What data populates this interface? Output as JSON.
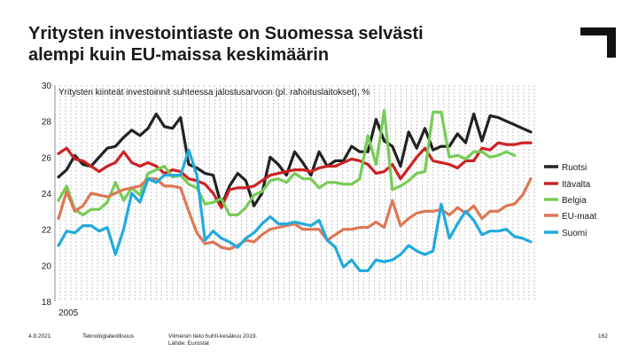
{
  "title_line1": "Yritysten investointiaste on Suomessa selvästi",
  "title_line2": "alempi kuin EU-maissa keskimäärin",
  "logo_icon": "corner-bracket-logo-icon",
  "footer": {
    "date": "4.9.2021",
    "org": "Teknologiateollisuus",
    "source_line1": "Viimeisin tieto huhti-kesäkuu 2019.",
    "source_line2": "Lähde: Eurostat",
    "page": "162"
  },
  "chart_data": {
    "type": "line",
    "subtitle": "Yritysten kiinteät investoinnit suhteessa jalostusarvoon (pl. rahoituslaitokset), %",
    "x_start_label": "2005",
    "ylim": [
      18,
      30
    ],
    "yticks": [
      "30",
      "28",
      "26",
      "24",
      "22",
      "20",
      "18"
    ],
    "grid": "vertical dashed",
    "legend_position": "right",
    "series": [
      {
        "name": "Ruotsi",
        "color": "#222222",
        "values": [
          24.9,
          25.3,
          26.1,
          25.6,
          25.5,
          26.0,
          26.5,
          26.6,
          27.1,
          27.5,
          27.2,
          27.6,
          28.4,
          27.7,
          27.6,
          28.2,
          25.6,
          25.4,
          25.1,
          25.0,
          23.3,
          24.4,
          25.1,
          24.7,
          23.3,
          24.0,
          26.0,
          25.6,
          25.0,
          26.3,
          25.7,
          25.0,
          26.3,
          25.5,
          25.8,
          25.8,
          26.6,
          26.3,
          26.3,
          28.1,
          26.9,
          26.6,
          25.5,
          27.4,
          26.5,
          27.6,
          26.4,
          26.6,
          26.6,
          27.3,
          26.8,
          28.4,
          26.9,
          28.3,
          28.2,
          28.0,
          27.8,
          27.6,
          27.4
        ]
      },
      {
        "name": "Itävalta",
        "color": "#cc2222",
        "values": [
          26.2,
          26.5,
          25.9,
          25.8,
          25.5,
          25.2,
          25.5,
          25.7,
          26.3,
          25.7,
          25.5,
          25.7,
          25.5,
          25.1,
          25.3,
          25.2,
          24.8,
          24.7,
          24.5,
          24.0,
          23.2,
          24.2,
          24.3,
          24.3,
          24.4,
          24.7,
          25.0,
          25.1,
          25.2,
          25.3,
          25.3,
          25.2,
          25.4,
          25.5,
          25.5,
          25.7,
          25.9,
          25.8,
          25.6,
          25.1,
          25.2,
          25.6,
          24.8,
          25.4,
          26.0,
          26.5,
          25.8,
          25.7,
          25.6,
          25.4,
          25.8,
          25.8,
          26.5,
          26.4,
          26.8,
          26.7,
          26.7,
          26.8,
          26.8
        ]
      },
      {
        "name": "Belgia",
        "color": "#77cc55",
        "values": [
          23.6,
          24.4,
          23.1,
          22.8,
          23.1,
          23.1,
          23.5,
          24.6,
          23.6,
          24.3,
          23.9,
          25.1,
          25.3,
          25.5,
          24.9,
          25.0,
          24.5,
          24.3,
          23.4,
          23.5,
          23.7,
          22.8,
          22.8,
          23.2,
          23.9,
          24.1,
          24.7,
          24.8,
          24.6,
          25.1,
          24.8,
          24.8,
          24.3,
          24.6,
          24.6,
          24.5,
          24.5,
          24.8,
          27.2,
          25.6,
          28.6,
          24.2,
          24.4,
          24.7,
          25.1,
          25.2,
          28.5,
          28.5,
          26.0,
          26.1,
          25.9,
          26.3,
          26.3,
          26.0,
          26.1,
          26.3,
          26.1
        ]
      },
      {
        "name": "EU-maat",
        "color": "#dd7755",
        "values": [
          22.6,
          24.1,
          23.0,
          23.3,
          24.0,
          23.9,
          23.8,
          24.0,
          24.2,
          24.3,
          24.4,
          24.8,
          24.8,
          24.4,
          24.4,
          24.3,
          23.0,
          21.8,
          21.2,
          21.3,
          21.0,
          20.9,
          21.1,
          21.4,
          21.3,
          21.7,
          22.0,
          22.1,
          22.2,
          22.3,
          22.0,
          22.0,
          22.0,
          21.4,
          21.7,
          22.0,
          22.0,
          22.1,
          22.1,
          22.4,
          22.1,
          23.6,
          22.2,
          22.6,
          22.9,
          23.0,
          23.0,
          23.1,
          22.8,
          23.2,
          22.9,
          23.3,
          22.6,
          23.0,
          23.0,
          23.3,
          23.4,
          23.9,
          24.8
        ]
      },
      {
        "name": "Suomi",
        "color": "#22aadd",
        "values": [
          21.1,
          21.9,
          21.8,
          22.2,
          22.2,
          21.9,
          22.1,
          20.6,
          22.0,
          24.0,
          23.5,
          24.8,
          24.6,
          25.0,
          25.0,
          25.0,
          26.4,
          25.0,
          21.4,
          21.9,
          21.5,
          21.3,
          21.0,
          21.5,
          21.8,
          22.3,
          22.7,
          22.3,
          22.3,
          22.4,
          22.3,
          22.2,
          22.5,
          21.4,
          21.0,
          19.9,
          20.3,
          19.7,
          19.7,
          20.3,
          20.2,
          20.3,
          20.6,
          21.1,
          20.8,
          20.6,
          20.8,
          23.4,
          21.5,
          22.3,
          23.0,
          22.5,
          21.7,
          21.9,
          21.9,
          22.0,
          21.6,
          21.5,
          21.3
        ]
      }
    ]
  }
}
